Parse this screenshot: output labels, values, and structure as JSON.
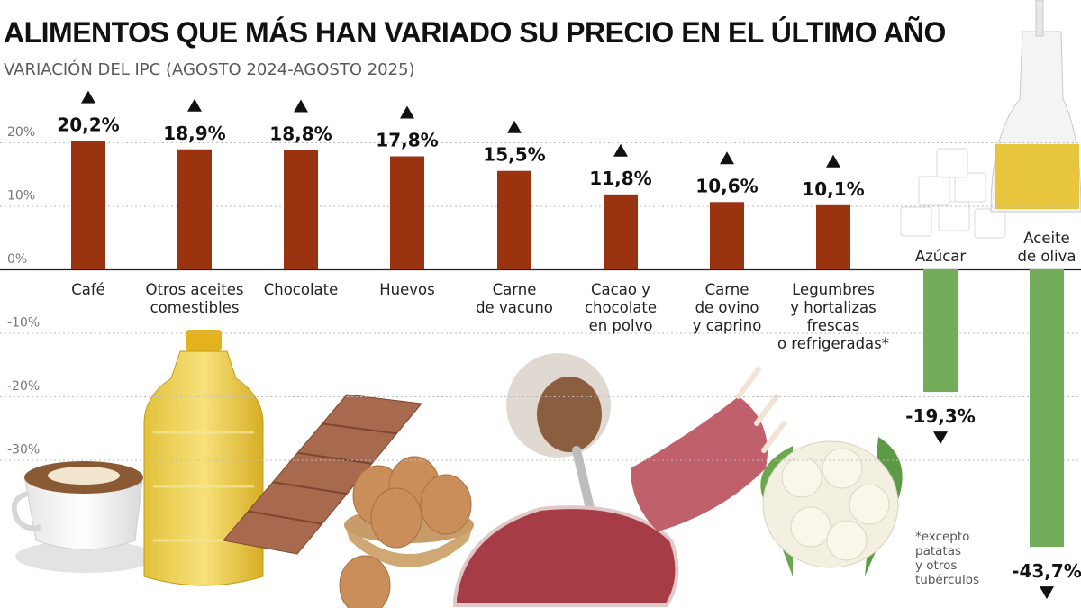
{
  "title": "ALIMENTOS QUE MÁS HAN VARIADO SU PRECIO EN EL ÚLTIMO AÑO",
  "subtitle": "VARIACIÓN DEL IPC (AGOSTO 2024-AGOSTO 2025)",
  "footnote": "*excepto\npatatas\ny otros\ntubérculos",
  "colors": {
    "increase": "#9a3410",
    "decrease": "#73ad5b",
    "grid": "#bdbdbd",
    "arrow": "#111111"
  },
  "illustrations": [
    "coffee-cup",
    "oil-bottle",
    "chocolate-bar",
    "eggs-bowl",
    "cocoa-spoon",
    "beef-cut",
    "lamb-ribs",
    "cauliflower",
    "sugar-cubes",
    "olive-oil-carafe"
  ],
  "chart_data": {
    "type": "bar",
    "ylabel": "",
    "ylim": [
      -45,
      22
    ],
    "yticks": [
      20,
      10,
      0,
      -10,
      -20,
      -30
    ],
    "ytick_labels": [
      "20%",
      "10%",
      "0%",
      "-10%",
      "-20%",
      "-30%"
    ],
    "grid": true,
    "categories": [
      [
        "Café"
      ],
      [
        "Otros aceites",
        "comestibles"
      ],
      [
        "Chocolate"
      ],
      [
        "Huevos"
      ],
      [
        "Carne",
        "de vacuno"
      ],
      [
        "Cacao y",
        "chocolate",
        "en polvo"
      ],
      [
        "Carne",
        "de ovino",
        "y caprino"
      ],
      [
        "Legumbres",
        "y hortalizas",
        "frescas",
        "o refrigeradas*"
      ],
      [
        "Azúcar"
      ],
      [
        "Aceite",
        "de oliva"
      ]
    ],
    "values": [
      20.2,
      18.9,
      18.8,
      17.8,
      15.5,
      11.8,
      10.6,
      10.1,
      -19.3,
      -43.7
    ],
    "value_labels": [
      "20,2%",
      "18,9%",
      "18,8%",
      "17,8%",
      "15,5%",
      "11,8%",
      "10,6%",
      "10,1%",
      "-19,3%",
      "-43,7%"
    ]
  }
}
